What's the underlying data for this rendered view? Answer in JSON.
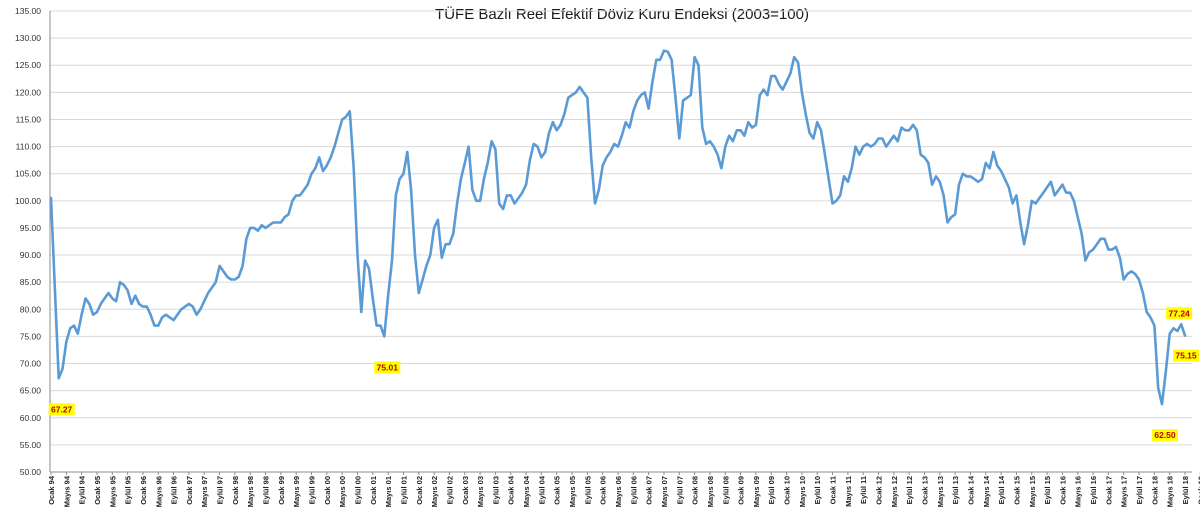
{
  "chart_data": {
    "type": "line",
    "title": "TÜFE Bazlı Reel Efektif Döviz Kuru Endeksi (2003=100)",
    "xlabel": "",
    "ylabel": "",
    "ylim": [
      50,
      135
    ],
    "yticks": [
      "50.00",
      "55.00",
      "60.00",
      "65.00",
      "70.00",
      "75.00",
      "80.00",
      "85.00",
      "90.00",
      "95.00",
      "100.00",
      "105.00",
      "110.00",
      "115.00",
      "120.00",
      "125.00",
      "130.00",
      "135.00"
    ],
    "xtick_labels": [
      "Ocak 94",
      "Mayıs 94",
      "Eylül 94",
      "Ocak 95",
      "Mayıs 95",
      "Eylül 95",
      "Ocak 96",
      "Mayıs 96",
      "Eylül 96",
      "Ocak 97",
      "Mayıs 97",
      "Eylül 97",
      "Ocak 98",
      "Mayıs 98",
      "Eylül 98",
      "Ocak 99",
      "Mayıs 99",
      "Eylül 99",
      "Ocak 00",
      "Mayıs 00",
      "Eylül 00",
      "Ocak 01",
      "Mayıs 01",
      "Eylül 01",
      "Ocak 02",
      "Mayıs 02",
      "Eylül 02",
      "Ocak 03",
      "Mayıs 03",
      "Eylül 03",
      "Ocak 04",
      "Mayıs 04",
      "Eylül 04",
      "Ocak 05",
      "Mayıs 05",
      "Eylül 05",
      "Ocak 06",
      "Mayıs 06",
      "Eylül 06",
      "Ocak 07",
      "Mayıs 07",
      "Eylül 07",
      "Ocak 08",
      "Mayıs 08",
      "Eylül 08",
      "Ocak 09",
      "Mayıs 09",
      "Eylül 09",
      "Ocak 10",
      "Mayıs 10",
      "Eylül 10",
      "Ocak 11",
      "Mayıs 11",
      "Eylül 11",
      "Ocak 12",
      "Mayıs 12",
      "Eylül 12",
      "Ocak 13",
      "Mayıs 13",
      "Eylül 13",
      "Ocak 14",
      "Mayıs 14",
      "Eylül 14",
      "Ocak 15",
      "Mayıs 15",
      "Eylül 15",
      "Ocak 16",
      "Mayıs 16",
      "Eylül 16",
      "Ocak 17",
      "Mayıs 17",
      "Eylül 17",
      "Ocak 18",
      "Mayıs 18",
      "Eylül 18",
      "Ocak 19"
    ],
    "line_color": "#5b9bd5",
    "label_bg": "#ffff00",
    "label_text_color": "#c00000",
    "series": [
      {
        "name": "TÜFE Bazlı Reel Efektif Döviz Kuru Endeksi",
        "anchors": [
          [
            0,
            100.5
          ],
          [
            2,
            67.27
          ],
          [
            3,
            69
          ],
          [
            4,
            74
          ],
          [
            5,
            76.5
          ],
          [
            6,
            77
          ],
          [
            7,
            75.5
          ],
          [
            8,
            79
          ],
          [
            9,
            82
          ],
          [
            10,
            81
          ],
          [
            11,
            79
          ],
          [
            12,
            79.5
          ],
          [
            13,
            81
          ],
          [
            14,
            82
          ],
          [
            15,
            83
          ],
          [
            16,
            82
          ],
          [
            17,
            81.5
          ],
          [
            18,
            85
          ],
          [
            19,
            84.5
          ],
          [
            20,
            83.5
          ],
          [
            21,
            81
          ],
          [
            22,
            82.5
          ],
          [
            23,
            81
          ],
          [
            24,
            80.5
          ],
          [
            25,
            80.5
          ],
          [
            26,
            79
          ],
          [
            27,
            77
          ],
          [
            28,
            77
          ],
          [
            29,
            78.5
          ],
          [
            30,
            79
          ],
          [
            31,
            78.5
          ],
          [
            32,
            78
          ],
          [
            33,
            79
          ],
          [
            34,
            80
          ],
          [
            35,
            80.5
          ],
          [
            36,
            81
          ],
          [
            37,
            80.5
          ],
          [
            38,
            79
          ],
          [
            39,
            80
          ],
          [
            40,
            81.5
          ],
          [
            41,
            83
          ],
          [
            42,
            84
          ],
          [
            43,
            85
          ],
          [
            44,
            88
          ],
          [
            45,
            87
          ],
          [
            46,
            86
          ],
          [
            47,
            85.5
          ],
          [
            48,
            85.5
          ],
          [
            49,
            86
          ],
          [
            50,
            88
          ],
          [
            51,
            93
          ],
          [
            52,
            95
          ],
          [
            53,
            95
          ],
          [
            54,
            94.5
          ],
          [
            55,
            95.5
          ],
          [
            56,
            95
          ],
          [
            57,
            95.5
          ],
          [
            58,
            96
          ],
          [
            59,
            96
          ],
          [
            60,
            96
          ],
          [
            61,
            97
          ],
          [
            62,
            97.5
          ],
          [
            63,
            100
          ],
          [
            64,
            101
          ],
          [
            65,
            101
          ],
          [
            66,
            102
          ],
          [
            67,
            103
          ],
          [
            68,
            105
          ],
          [
            69,
            106
          ],
          [
            70,
            108
          ],
          [
            71,
            105.5
          ],
          [
            72,
            106.5
          ],
          [
            73,
            108
          ],
          [
            74,
            110
          ],
          [
            75,
            112.5
          ],
          [
            76,
            115
          ],
          [
            77,
            115.5
          ],
          [
            78,
            116.5
          ],
          [
            79,
            106
          ],
          [
            80,
            90
          ],
          [
            81,
            79.5
          ],
          [
            82,
            89
          ],
          [
            83,
            87.5
          ],
          [
            84,
            82
          ],
          [
            85,
            77
          ],
          [
            86,
            77
          ],
          [
            87,
            75.01
          ],
          [
            88,
            82.5
          ],
          [
            89,
            89
          ],
          [
            90,
            101
          ],
          [
            91,
            104
          ],
          [
            92,
            105
          ],
          [
            93,
            109
          ],
          [
            94,
            102
          ],
          [
            95,
            90
          ],
          [
            96,
            83
          ],
          [
            97,
            85.5
          ],
          [
            98,
            88
          ],
          [
            99,
            90
          ],
          [
            100,
            95
          ],
          [
            101,
            96.5
          ],
          [
            102,
            89.5
          ],
          [
            103,
            92
          ],
          [
            104,
            92
          ],
          [
            105,
            94
          ],
          [
            106,
            99.5
          ],
          [
            107,
            104
          ],
          [
            108,
            107
          ],
          [
            109,
            110
          ],
          [
            110,
            102
          ],
          [
            111,
            100
          ],
          [
            112,
            100
          ],
          [
            113,
            104
          ],
          [
            114,
            107
          ],
          [
            115,
            111
          ],
          [
            116,
            109.5
          ],
          [
            117,
            99.5
          ],
          [
            118,
            98.5
          ],
          [
            119,
            101
          ],
          [
            120,
            101
          ],
          [
            121,
            99.5
          ],
          [
            122,
            100.5
          ],
          [
            123,
            101.5
          ],
          [
            124,
            103
          ],
          [
            125,
            107.5
          ],
          [
            126,
            110.5
          ],
          [
            127,
            110
          ],
          [
            128,
            108
          ],
          [
            129,
            109
          ],
          [
            130,
            112.5
          ],
          [
            131,
            114.5
          ],
          [
            132,
            113
          ],
          [
            133,
            114
          ],
          [
            134,
            116
          ],
          [
            135,
            119
          ],
          [
            136,
            119.5
          ],
          [
            137,
            120
          ],
          [
            138,
            121
          ],
          [
            139,
            120
          ],
          [
            140,
            119
          ],
          [
            141,
            108
          ],
          [
            142,
            99.5
          ],
          [
            143,
            102
          ],
          [
            144,
            106.5
          ],
          [
            145,
            108
          ],
          [
            146,
            109
          ],
          [
            147,
            110.5
          ],
          [
            148,
            110
          ],
          [
            149,
            112
          ],
          [
            150,
            114.5
          ],
          [
            151,
            113.5
          ],
          [
            152,
            116.5
          ],
          [
            153,
            118.5
          ],
          [
            154,
            119.5
          ],
          [
            155,
            120
          ],
          [
            156,
            117
          ],
          [
            157,
            122
          ],
          [
            158,
            126
          ],
          [
            159,
            126
          ],
          [
            160,
            127.7
          ],
          [
            161,
            127.5
          ],
          [
            162,
            126
          ],
          [
            163,
            119
          ],
          [
            164,
            111.5
          ],
          [
            165,
            118.5
          ],
          [
            166,
            119
          ],
          [
            167,
            119.5
          ],
          [
            168,
            126.5
          ],
          [
            169,
            125
          ],
          [
            170,
            113.5
          ],
          [
            171,
            110.5
          ],
          [
            172,
            111
          ],
          [
            173,
            110
          ],
          [
            174,
            108.5
          ],
          [
            175,
            106
          ],
          [
            176,
            110
          ],
          [
            177,
            112
          ],
          [
            178,
            111
          ],
          [
            179,
            113
          ],
          [
            180,
            113
          ],
          [
            181,
            112
          ],
          [
            182,
            114.5
          ],
          [
            183,
            113.5
          ],
          [
            184,
            114
          ],
          [
            185,
            119.5
          ],
          [
            186,
            120.5
          ],
          [
            187,
            119.5
          ],
          [
            188,
            123
          ],
          [
            189,
            123
          ],
          [
            190,
            121.5
          ],
          [
            191,
            120.5
          ],
          [
            192,
            122
          ],
          [
            193,
            123.5
          ],
          [
            194,
            126.5
          ],
          [
            195,
            125.5
          ],
          [
            196,
            120
          ],
          [
            197,
            116
          ],
          [
            198,
            112.5
          ],
          [
            199,
            111.5
          ],
          [
            200,
            114.5
          ],
          [
            201,
            113
          ],
          [
            202,
            108.5
          ],
          [
            203,
            104
          ],
          [
            204,
            99.5
          ],
          [
            205,
            100
          ],
          [
            206,
            101
          ],
          [
            207,
            104.5
          ],
          [
            208,
            103.5
          ],
          [
            209,
            106
          ],
          [
            210,
            110
          ],
          [
            211,
            108.5
          ],
          [
            212,
            110
          ],
          [
            213,
            110.5
          ],
          [
            214,
            110
          ],
          [
            215,
            110.5
          ],
          [
            216,
            111.5
          ],
          [
            217,
            111.5
          ],
          [
            218,
            110
          ],
          [
            219,
            111
          ],
          [
            220,
            112
          ],
          [
            221,
            111
          ],
          [
            222,
            113.5
          ],
          [
            223,
            113
          ],
          [
            224,
            113
          ],
          [
            225,
            114
          ],
          [
            226,
            113
          ],
          [
            227,
            108.5
          ],
          [
            228,
            108
          ],
          [
            229,
            107
          ],
          [
            230,
            103
          ],
          [
            231,
            104.5
          ],
          [
            232,
            103.5
          ],
          [
            233,
            101
          ],
          [
            234,
            96
          ],
          [
            235,
            97
          ],
          [
            236,
            97.5
          ],
          [
            237,
            103
          ],
          [
            238,
            105
          ],
          [
            239,
            104.5
          ],
          [
            240,
            104.5
          ],
          [
            241,
            104
          ],
          [
            242,
            103.5
          ],
          [
            243,
            104
          ],
          [
            244,
            107
          ],
          [
            245,
            106
          ],
          [
            246,
            109
          ],
          [
            247,
            106.5
          ],
          [
            248,
            105.5
          ],
          [
            249,
            104
          ],
          [
            250,
            102.5
          ],
          [
            251,
            99.5
          ],
          [
            252,
            101
          ],
          [
            253,
            96
          ],
          [
            254,
            92
          ],
          [
            255,
            95.5
          ],
          [
            256,
            100
          ],
          [
            257,
            99.5
          ],
          [
            258,
            100.5
          ],
          [
            259,
            101.5
          ],
          [
            260,
            102.5
          ],
          [
            261,
            103.5
          ],
          [
            262,
            101
          ],
          [
            263,
            102
          ],
          [
            264,
            103
          ],
          [
            265,
            101.5
          ],
          [
            266,
            101.5
          ],
          [
            267,
            100
          ],
          [
            268,
            97
          ],
          [
            269,
            94
          ],
          [
            270,
            89
          ],
          [
            271,
            90.5
          ],
          [
            272,
            91
          ],
          [
            273,
            92
          ],
          [
            274,
            93
          ],
          [
            275,
            93
          ],
          [
            276,
            91
          ],
          [
            277,
            91
          ],
          [
            278,
            91.5
          ],
          [
            279,
            89.5
          ],
          [
            280,
            85.5
          ],
          [
            281,
            86.5
          ],
          [
            282,
            87
          ],
          [
            283,
            86.5
          ],
          [
            284,
            85.5
          ],
          [
            285,
            83
          ],
          [
            286,
            79.5
          ],
          [
            287,
            78.5
          ],
          [
            288,
            77
          ],
          [
            289,
            65.5
          ],
          [
            290,
            62.5
          ],
          [
            291,
            68.5
          ],
          [
            292,
            75.5
          ],
          [
            293,
            76.5
          ],
          [
            294,
            76
          ],
          [
            295,
            77.24
          ],
          [
            296,
            75.15
          ]
        ]
      }
    ],
    "annotations": [
      {
        "label": "67.27",
        "index": 2,
        "value": 67.27,
        "position": "below"
      },
      {
        "label": "75.01",
        "index": 87,
        "value": 75.01,
        "position": "below"
      },
      {
        "label": "62.50",
        "index": 290,
        "value": 62.5,
        "position": "below"
      },
      {
        "label": "77.24",
        "index": 295,
        "value": 77.24,
        "position": "above-right"
      },
      {
        "label": "75.15",
        "index": 296,
        "value": 75.15,
        "position": "right"
      }
    ]
  }
}
